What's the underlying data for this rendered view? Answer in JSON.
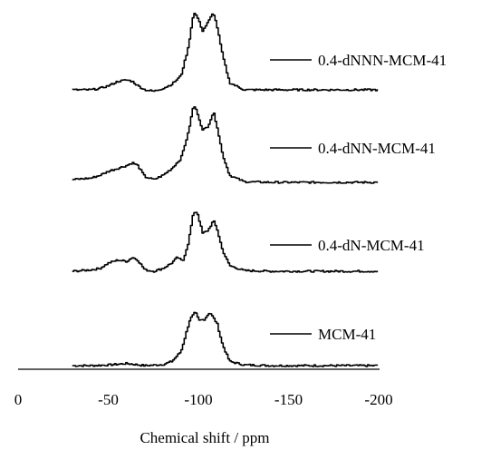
{
  "chart_data": {
    "type": "line",
    "xlabel": "Chemical shift / ppm",
    "xlim": [
      0,
      -200
    ],
    "x_ticks": [
      0,
      -50,
      -100,
      -150,
      -200
    ],
    "x_tick_labels": [
      "0",
      "-50",
      "-100",
      "-150",
      "-200"
    ],
    "series": [
      {
        "name": "MCM-41",
        "x": [
          -30,
          -40,
          -50,
          -60,
          -70,
          -80,
          -85,
          -90,
          -95,
          -98,
          -100,
          -103,
          -106,
          -110,
          -113,
          -117,
          -125,
          -140,
          -160,
          -180,
          -200
        ],
        "y": [
          0,
          0,
          0.5,
          1.5,
          0,
          0.8,
          3,
          10,
          33,
          38,
          32,
          33,
          38,
          30,
          15,
          3,
          0.5,
          0,
          0,
          0,
          0
        ]
      },
      {
        "name": "0.4-dN-MCM-41",
        "x": [
          -30,
          -40,
          -45,
          -50,
          -55,
          -60,
          -63,
          -66,
          -70,
          -75,
          -80,
          -85,
          -88,
          -91,
          -94,
          -97,
          -99,
          -102,
          -105,
          -108,
          -110,
          -113,
          -117,
          -125,
          -140,
          -160,
          -180,
          -200
        ],
        "y": [
          0,
          1,
          2,
          6,
          8,
          7,
          10,
          8,
          1,
          0,
          2,
          6,
          10,
          7,
          20,
          42,
          42,
          27,
          29,
          36,
          30,
          15,
          4,
          0.5,
          0,
          0,
          0,
          0
        ]
      },
      {
        "name": "0.4-dNN-MCM-41",
        "x": [
          -30,
          -40,
          -45,
          -50,
          -55,
          -60,
          -63,
          -66,
          -70,
          -75,
          -80,
          -85,
          -90,
          -94,
          -97,
          -99,
          -102,
          -105,
          -108,
          -110,
          -113,
          -117,
          -125,
          -140,
          -160,
          -180,
          -200
        ],
        "y": [
          2,
          3,
          5,
          8,
          10,
          12,
          14,
          12,
          4,
          2,
          5,
          10,
          17,
          35,
          55,
          50,
          37,
          40,
          50,
          40,
          20,
          5,
          0.5,
          0,
          0,
          0,
          0
        ]
      },
      {
        "name": "0.4-dNNN-MCM-41",
        "x": [
          -30,
          -40,
          -45,
          -50,
          -55,
          -60,
          -63,
          -66,
          -70,
          -75,
          -80,
          -85,
          -90,
          -94,
          -97,
          -99,
          -102,
          -105,
          -108,
          -110,
          -113,
          -117,
          -125,
          -140,
          -160,
          -180,
          -200
        ],
        "y": [
          0,
          0,
          1,
          3,
          6,
          7,
          6,
          3,
          0,
          -1,
          1,
          4,
          10,
          30,
          55,
          52,
          42,
          48,
          55,
          45,
          25,
          5,
          0,
          0,
          0,
          0,
          0
        ]
      }
    ],
    "grid": false,
    "legend": "right of each trace"
  }
}
